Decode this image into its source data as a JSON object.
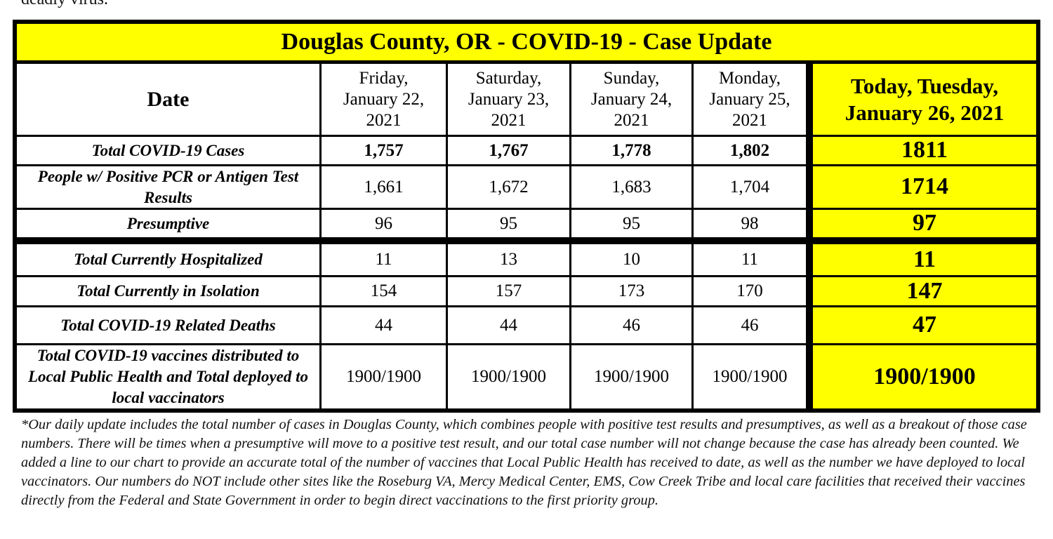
{
  "header": {
    "top_text": "deadly virus."
  },
  "table": {
    "title": "Douglas County, OR - COVID-19 - Case Update",
    "header": [
      "Date",
      "Friday, January 22, 2021",
      "Saturday, January 23, 2021",
      "Sunday, January 24, 2021",
      "Monday, January 25, 2021",
      "Today, Tuesday, January 26, 2021"
    ],
    "rows": [
      [
        "Total COVID-19 Cases",
        "1,757",
        "1,767",
        "1,778",
        "1,802",
        "1811"
      ],
      [
        "People w/ Positive PCR or Antigen Test Results",
        "1,661",
        "1,672",
        "1,683",
        "1,704",
        "1714"
      ],
      [
        "Presumptive",
        "96",
        "95",
        "95",
        "98",
        "97"
      ],
      [
        "Total Currently Hospitalized",
        "11",
        "13",
        "10",
        "11",
        "11"
      ],
      [
        "Total Currently in Isolation",
        "154",
        "157",
        "173",
        "170",
        "147"
      ],
      [
        "Total COVID-19 Related Deaths",
        "44",
        "44",
        "46",
        "46",
        "47"
      ],
      [
        "Total COVID-19 vaccines distributed to Local Public Health and Total deployed to local vaccinators",
        "1900/1900",
        "1900/1900",
        "1900/1900",
        "1900/1900",
        "1900/1900"
      ]
    ]
  },
  "footnote": "*Our daily update includes the total number of cases in Douglas County, which combines people with positive test results and presumptives, as well as a breakout of those case numbers. There will be times when a presumptive will move to a positive test result, and our total case number will not change because the case has already been counted. We added a line to our chart to provide an accurate total of the number of vaccines that Local Public Health has received to date, as well as the number we have deployed to local vaccinators.  Our numbers do NOT include other sites like the Roseburg VA, Mercy Medical Center, EMS, Cow Creek Tribe and local care facilities that received their vaccines directly from the Federal and State Government in order to begin direct vaccinations to the first priority group."
}
